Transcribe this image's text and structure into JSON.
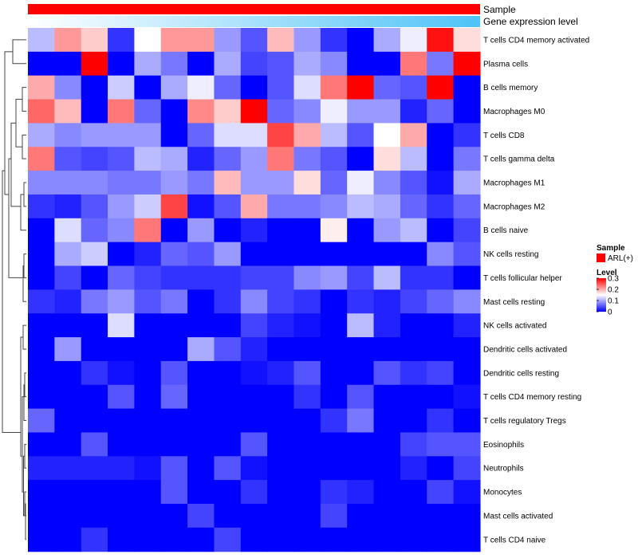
{
  "chart_data": {
    "type": "heatmap",
    "title": "",
    "annotation_rows": [
      {
        "label": "Sample",
        "color": "#ff0000"
      },
      {
        "label": "Gene expression level",
        "gradient": [
          "#ffffff",
          "#4fc3f7"
        ]
      }
    ],
    "rows": [
      "T cells CD4 memory activated",
      "Plasma cells",
      "B cells memory",
      "Macrophages M0",
      "T cells CD8",
      "T cells gamma delta",
      "Macrophages M1",
      "Macrophages M2",
      "B cells naive",
      "NK cells resting",
      "T cells follicular helper",
      "Mast cells resting",
      "NK cells activated",
      "Dendritic cells activated",
      "Dendritic cells resting",
      "T cells CD4 memory resting",
      "T cells regulatory  Tregs",
      "Eosinophils",
      "Neutrophils",
      "Monocytes",
      "Mast cells activated",
      "T cells CD4 naive"
    ],
    "n_columns": 17,
    "values": [
      [
        0.11,
        0.21,
        0.18,
        0.03,
        0.15,
        0.21,
        0.21,
        0.09,
        0.05,
        0.19,
        0.09,
        0.03,
        0.0,
        0.1,
        0.14,
        0.29,
        0.17
      ],
      [
        0.0,
        0.0,
        0.3,
        0.0,
        0.1,
        0.07,
        0.0,
        0.1,
        0.04,
        0.05,
        0.1,
        0.08,
        0.0,
        0.0,
        0.23,
        0.07,
        0.3
      ],
      [
        0.2,
        0.08,
        0.0,
        0.12,
        0.0,
        0.1,
        0.14,
        0.06,
        0.0,
        0.05,
        0.13,
        0.23,
        0.3,
        0.06,
        0.05,
        0.3,
        0.0
      ],
      [
        0.24,
        0.19,
        0.0,
        0.23,
        0.06,
        0.0,
        0.22,
        0.18,
        0.3,
        0.06,
        0.08,
        0.14,
        0.09,
        0.09,
        0.02,
        0.06,
        0.0
      ],
      [
        0.1,
        0.08,
        0.09,
        0.09,
        0.09,
        0.0,
        0.06,
        0.13,
        0.13,
        0.26,
        0.2,
        0.11,
        0.05,
        0.15,
        0.2,
        0.0,
        0.03
      ],
      [
        0.23,
        0.05,
        0.04,
        0.05,
        0.11,
        0.1,
        0.02,
        0.06,
        0.09,
        0.23,
        0.07,
        0.05,
        0.0,
        0.17,
        0.11,
        0.0,
        0.07
      ],
      [
        0.08,
        0.08,
        0.08,
        0.07,
        0.07,
        0.09,
        0.07,
        0.19,
        0.09,
        0.09,
        0.17,
        0.06,
        0.14,
        0.08,
        0.05,
        0.01,
        0.1
      ],
      [
        0.03,
        0.02,
        0.05,
        0.09,
        0.12,
        0.26,
        0.01,
        0.05,
        0.2,
        0.07,
        0.07,
        0.08,
        0.11,
        0.1,
        0.06,
        0.03,
        0.06
      ],
      [
        0.0,
        0.13,
        0.06,
        0.08,
        0.23,
        0.0,
        0.09,
        0.0,
        0.02,
        0.0,
        0.0,
        0.16,
        0.0,
        0.09,
        0.11,
        0.0,
        0.04
      ],
      [
        0.0,
        0.1,
        0.12,
        0.0,
        0.02,
        0.06,
        0.05,
        0.09,
        0.0,
        0.0,
        0.0,
        0.0,
        0.0,
        0.0,
        0.0,
        0.08,
        0.05
      ],
      [
        0.0,
        0.04,
        0.0,
        0.06,
        0.04,
        0.03,
        0.03,
        0.03,
        0.04,
        0.04,
        0.08,
        0.09,
        0.04,
        0.11,
        0.03,
        0.03,
        0.0
      ],
      [
        0.03,
        0.02,
        0.07,
        0.09,
        0.05,
        0.07,
        0.0,
        0.03,
        0.08,
        0.04,
        0.03,
        0.0,
        0.03,
        0.02,
        0.04,
        0.06,
        0.08
      ],
      [
        0.0,
        0.0,
        0.0,
        0.13,
        0.0,
        0.0,
        0.0,
        0.0,
        0.04,
        0.02,
        0.01,
        0.0,
        0.11,
        0.02,
        0.0,
        0.0,
        0.02
      ],
      [
        0.0,
        0.09,
        0.0,
        0.0,
        0.0,
        0.0,
        0.1,
        0.05,
        0.02,
        0.0,
        0.0,
        0.0,
        0.0,
        0.0,
        0.0,
        0.0,
        0.0
      ],
      [
        0.0,
        0.0,
        0.03,
        0.01,
        0.0,
        0.05,
        0.0,
        0.0,
        0.01,
        0.02,
        0.05,
        0.0,
        0.0,
        0.05,
        0.03,
        0.04,
        0.0
      ],
      [
        0.0,
        0.0,
        0.0,
        0.05,
        0.0,
        0.06,
        0.0,
        0.0,
        0.0,
        0.0,
        0.03,
        0.0,
        0.05,
        0.0,
        0.0,
        0.0,
        0.01
      ],
      [
        0.06,
        0.0,
        0.0,
        0.0,
        0.0,
        0.0,
        0.0,
        0.0,
        0.0,
        0.0,
        0.0,
        0.03,
        0.07,
        0.0,
        0.0,
        0.03,
        0.0
      ],
      [
        0.0,
        0.0,
        0.05,
        0.0,
        0.0,
        0.0,
        0.0,
        0.0,
        0.05,
        0.0,
        0.0,
        0.0,
        0.0,
        0.0,
        0.04,
        0.05,
        0.05
      ],
      [
        0.02,
        0.02,
        0.02,
        0.02,
        0.01,
        0.05,
        0.0,
        0.05,
        0.01,
        0.0,
        0.0,
        0.0,
        0.0,
        0.0,
        0.02,
        0.0,
        0.04
      ],
      [
        0.0,
        0.0,
        0.0,
        0.0,
        0.0,
        0.05,
        0.0,
        0.0,
        0.03,
        0.0,
        0.0,
        0.03,
        0.02,
        0.0,
        0.0,
        0.04,
        0.01
      ],
      [
        0.0,
        0.0,
        0.0,
        0.0,
        0.0,
        0.0,
        0.04,
        0.0,
        0.0,
        0.0,
        0.0,
        0.04,
        0.0,
        0.0,
        0.0,
        0.0,
        0.0
      ],
      [
        0.0,
        0.0,
        0.03,
        0.0,
        0.0,
        0.0,
        0.0,
        0.04,
        0.0,
        0.0,
        0.0,
        0.0,
        0.0,
        0.0,
        0.0,
        0.0,
        0.0
      ]
    ],
    "color_scale": {
      "min": 0,
      "mid": 0.15,
      "max": 0.3,
      "colors": [
        "#0000ff",
        "#ffffff",
        "#ff0000"
      ]
    },
    "legend": {
      "sample": {
        "title": "Sample",
        "items": [
          {
            "label": "ARL(+)",
            "color": "#ff0000"
          }
        ]
      },
      "level": {
        "title": "Level",
        "ticks": [
          {
            "value": 0.3,
            "label": "0.3"
          },
          {
            "value": 0.2,
            "label": "0.2"
          },
          {
            "value": 0.1,
            "label": "0.1"
          },
          {
            "value": 0,
            "label": "0"
          }
        ]
      }
    }
  }
}
